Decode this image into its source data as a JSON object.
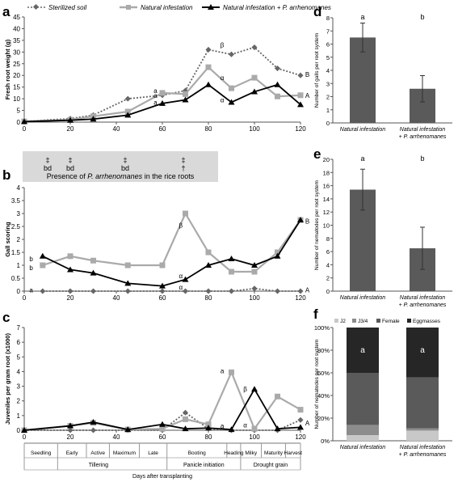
{
  "panel_labels": [
    "a",
    "b",
    "c",
    "d",
    "e",
    "f"
  ],
  "legend": {
    "items": [
      {
        "name": "Sterilized soil",
        "color": "#666666",
        "style": "dotted",
        "marker": "diamond"
      },
      {
        "name": "Natural infestation",
        "color": "#aaaaaa",
        "style": "solid",
        "marker": "square"
      },
      {
        "name": "Natural infestation + P. arrhenomanes",
        "color": "#000000",
        "style": "solid",
        "marker": "triangle"
      }
    ]
  },
  "presence_box": {
    "symbols": [
      "‡",
      "‡",
      "‡",
      "‡"
    ],
    "letters": [
      "bd",
      "bd",
      "bd",
      "†"
    ],
    "text_left": "Presence of",
    "text_italic": "P. arrhenomanes",
    "text_right": "in the rice roots"
  },
  "growth_stages": {
    "sub": [
      "Seedling",
      "Early",
      "Active",
      "Maximum",
      "Late",
      "Booting",
      "Heading",
      "Milky",
      "Maturity",
      "Harvest"
    ],
    "groups": [
      "Tillering",
      "Panicle initiation",
      "Drought grain"
    ],
    "xlabel": "Days after transplanting"
  },
  "chart_data": [
    {
      "id": "a",
      "type": "line",
      "ylabel": "Fresh root weight (g)",
      "ylim": [
        0,
        45
      ],
      "yticks": [
        0,
        5,
        10,
        15,
        20,
        25,
        30,
        35,
        40,
        45
      ],
      "xlim": [
        0,
        120
      ],
      "xticks": [
        0,
        20,
        40,
        60,
        80,
        100,
        120
      ],
      "series": [
        {
          "name": "Sterilized soil",
          "color": "#666666",
          "dash": "2,2",
          "marker": "diamond",
          "x": [
            0,
            20,
            30,
            45,
            60,
            70,
            80,
            90,
            100,
            110,
            120
          ],
          "y": [
            0.3,
            1.5,
            3,
            10,
            11.5,
            13.5,
            31,
            29,
            32,
            23,
            20
          ]
        },
        {
          "name": "Natural infestation",
          "color": "#aaaaaa",
          "dash": "",
          "marker": "square",
          "x": [
            0,
            20,
            30,
            45,
            60,
            70,
            80,
            90,
            100,
            110,
            120
          ],
          "y": [
            0.3,
            1,
            2.5,
            4.5,
            12.5,
            12,
            23.5,
            14.5,
            19,
            11,
            11.5
          ]
        },
        {
          "name": "Natural infestation + P. arrhenomanes",
          "color": "#000000",
          "dash": "",
          "marker": "triangle",
          "x": [
            0,
            20,
            30,
            45,
            60,
            70,
            80,
            90,
            100,
            110,
            120
          ],
          "y": [
            0.2,
            0.8,
            1.3,
            3,
            8,
            9.5,
            16,
            8.5,
            13,
            16,
            7.5
          ]
        }
      ],
      "annotations": [
        {
          "text": "a",
          "x": 57,
          "y": 13.5
        },
        {
          "text": "a",
          "x": 57,
          "y": 11.5
        },
        {
          "text": "a",
          "x": 57,
          "y": 8.5
        },
        {
          "text": "β",
          "x": 86,
          "y": 33
        },
        {
          "text": "α",
          "x": 86,
          "y": 19
        },
        {
          "text": "α",
          "x": 86,
          "y": 9.5
        },
        {
          "text": "B",
          "x": 123,
          "y": 20.5
        },
        {
          "text": "A",
          "x": 123,
          "y": 11.5
        }
      ]
    },
    {
      "id": "b",
      "type": "line",
      "ylabel": "Gall scoring",
      "ylim": [
        0,
        4
      ],
      "yticks": [
        0,
        0.5,
        1,
        1.5,
        2,
        2.5,
        3,
        3.5,
        4
      ],
      "xlim": [
        0,
        120
      ],
      "xticks": [
        0,
        20,
        40,
        60,
        80,
        100,
        120
      ],
      "series": [
        {
          "name": "Sterilized soil",
          "color": "#666666",
          "dash": "2,2",
          "marker": "diamond",
          "x": [
            8,
            20,
            30,
            45,
            60,
            70,
            80,
            90,
            100,
            110,
            120
          ],
          "y": [
            0,
            0,
            0,
            0,
            0,
            0,
            0,
            0,
            0.1,
            0,
            0
          ]
        },
        {
          "name": "Natural infestation",
          "color": "#aaaaaa",
          "dash": "",
          "marker": "square",
          "x": [
            8,
            20,
            30,
            45,
            60,
            70,
            80,
            90,
            100,
            110,
            120
          ],
          "y": [
            1,
            1.35,
            1.18,
            1,
            1,
            3,
            1.5,
            0.75,
            0.75,
            1.5,
            2.75
          ]
        },
        {
          "name": "Natural infestation + P. arrhenomanes",
          "color": "#000000",
          "dash": "",
          "marker": "triangle",
          "x": [
            8,
            20,
            30,
            45,
            60,
            70,
            80,
            90,
            100,
            110,
            120
          ],
          "y": [
            1.35,
            0.83,
            0.7,
            0.3,
            0.2,
            0.45,
            1,
            1.25,
            1,
            1.35,
            2.75
          ]
        }
      ],
      "annotations": [
        {
          "text": "b",
          "x": 3,
          "y": 1.25
        },
        {
          "text": "b",
          "x": 3,
          "y": 0.9
        },
        {
          "text": "a",
          "x": 3,
          "y": 0.05
        },
        {
          "text": "β",
          "x": 68,
          "y": 2.55
        },
        {
          "text": "α",
          "x": 68,
          "y": 0.6
        },
        {
          "text": "α",
          "x": 68,
          "y": 0.15
        },
        {
          "text": "B",
          "x": 123,
          "y": 2.7
        },
        {
          "text": "A",
          "x": 123,
          "y": 0.05
        }
      ]
    },
    {
      "id": "c",
      "type": "line",
      "ylabel": "Juveniles per gram root (x1000)",
      "ylim": [
        0,
        7
      ],
      "yticks": [
        0,
        1,
        2,
        3,
        4,
        5,
        6,
        7
      ],
      "xlim": [
        0,
        120
      ],
      "xticks": [
        0,
        20,
        40,
        60,
        80,
        100,
        120
      ],
      "series": [
        {
          "name": "Sterilized soil",
          "color": "#666666",
          "dash": "2,2",
          "marker": "diamond",
          "x": [
            0,
            20,
            30,
            45,
            60,
            70,
            80,
            90,
            100,
            110,
            120
          ],
          "y": [
            0,
            0,
            0,
            0,
            0,
            1.2,
            0.1,
            0,
            0,
            0,
            0.7
          ]
        },
        {
          "name": "Natural infestation",
          "color": "#aaaaaa",
          "dash": "",
          "marker": "square",
          "x": [
            0,
            20,
            30,
            45,
            60,
            70,
            80,
            90,
            100,
            110,
            120
          ],
          "y": [
            0,
            0.3,
            0.5,
            0.05,
            0.1,
            0.75,
            0.4,
            3.95,
            0.1,
            2.3,
            1.4
          ]
        },
        {
          "name": "Natural infestation + P. arrhenomanes",
          "color": "#000000",
          "dash": "",
          "marker": "triangle",
          "x": [
            0,
            20,
            30,
            45,
            60,
            70,
            80,
            90,
            100,
            110,
            120
          ],
          "y": [
            0,
            0.3,
            0.55,
            0.05,
            0.4,
            0.1,
            0.15,
            0.05,
            2.8,
            0.1,
            0.2
          ]
        }
      ],
      "annotations": [
        {
          "text": "a",
          "x": 86,
          "y": 4.05
        },
        {
          "text": "a",
          "x": 86,
          "y": 0.3
        },
        {
          "text": "β",
          "x": 96,
          "y": 2.8
        },
        {
          "text": "α",
          "x": 96,
          "y": 0.35
        },
        {
          "text": "A",
          "x": 123,
          "y": 0.5
        }
      ]
    },
    {
      "id": "d",
      "type": "bar",
      "ylabel": "Number of galls per root system",
      "ylim": [
        0,
        8
      ],
      "yticks": [
        0,
        1,
        2,
        3,
        4,
        5,
        6,
        7,
        8
      ],
      "categories": [
        "Natural infestation",
        "Natural  infestation + P. arrhenomanes"
      ],
      "values": [
        6.5,
        2.6
      ],
      "errors": [
        1.1,
        1.0
      ],
      "letters": [
        "a",
        "b"
      ]
    },
    {
      "id": "e",
      "type": "bar",
      "ylabel": "Number of nematodes per root system",
      "ylim": [
        0,
        20
      ],
      "yticks": [
        0,
        2,
        4,
        6,
        8,
        10,
        12,
        14,
        16,
        18,
        20
      ],
      "categories": [
        "Natural infestation",
        "Natural infestation + P. arrhenomanes"
      ],
      "values": [
        15.4,
        6.5
      ],
      "errors": [
        3.1,
        3.2
      ],
      "letters": [
        "a",
        "b"
      ]
    },
    {
      "id": "f",
      "type": "bar",
      "stacked": true,
      "ylabel": "Number of nematodes per root system",
      "ylim": [
        0,
        100
      ],
      "yticks": [
        "0%",
        "20%",
        "40%",
        "60%",
        "80%",
        "100%"
      ],
      "categories": [
        "Natural infestation",
        "Natural infestation + P. arrhenomanes"
      ],
      "series": [
        {
          "name": "J2",
          "color": "#c8c8c8",
          "values": [
            5,
            9
          ]
        },
        {
          "name": "J3/4",
          "color": "#8c8c8c",
          "values": [
            9,
            2
          ]
        },
        {
          "name": "Female",
          "color": "#5a5a5a",
          "values": [
            46,
            45
          ]
        },
        {
          "name": "Eggmasses",
          "color": "#262626",
          "values": [
            40,
            44
          ]
        }
      ],
      "letters": [
        "a",
        "a"
      ]
    }
  ]
}
